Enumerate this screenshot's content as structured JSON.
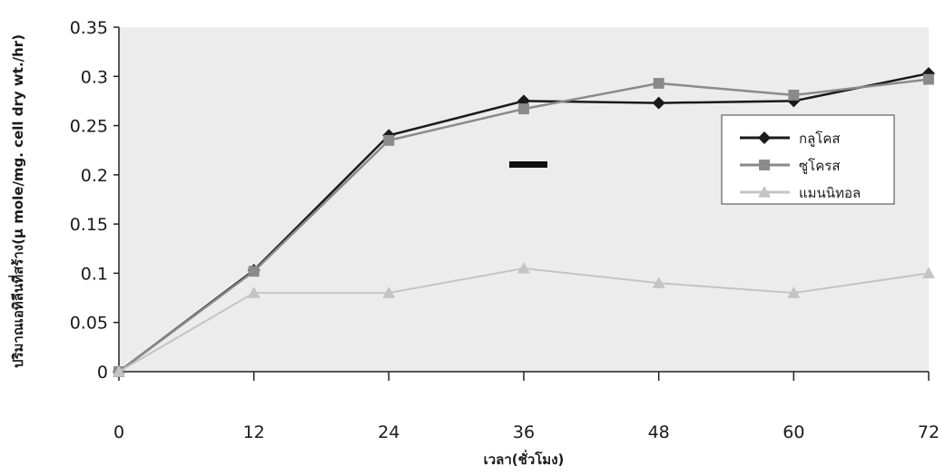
{
  "chart_data": {
    "type": "line",
    "title": "",
    "xlabel": "เวลา(ชั่วโมง)",
    "ylabel": "ปริมาณเอทิลีนที่สร้าง(µ mole/mg. cell dry wt./hr)",
    "x": [
      0,
      12,
      24,
      36,
      48,
      60,
      72
    ],
    "x_tick_labels": [
      "0",
      "12",
      "24",
      "36",
      "48",
      "60",
      "72"
    ],
    "y_tick_labels": [
      "0",
      "0.05",
      "0.1",
      "0.15",
      "0.2",
      "0.25",
      "0.3",
      "0.35"
    ],
    "ylim": [
      0,
      0.35
    ],
    "grid": false,
    "legend_position": "right",
    "series": [
      {
        "name": "กลูโคส",
        "values": [
          0,
          0.103,
          0.24,
          0.275,
          0.273,
          0.275,
          0.303
        ],
        "color": "#1a1a1a",
        "marker": "diamond"
      },
      {
        "name": "ซูโครส",
        "values": [
          0,
          0.102,
          0.235,
          0.267,
          0.293,
          0.281,
          0.297
        ],
        "color": "#8a8a8a",
        "marker": "square"
      },
      {
        "name": "แมนนิทอล",
        "values": [
          0,
          0.08,
          0.08,
          0.105,
          0.09,
          0.08,
          0.1
        ],
        "color": "#c4c4c4",
        "marker": "triangle"
      }
    ]
  }
}
